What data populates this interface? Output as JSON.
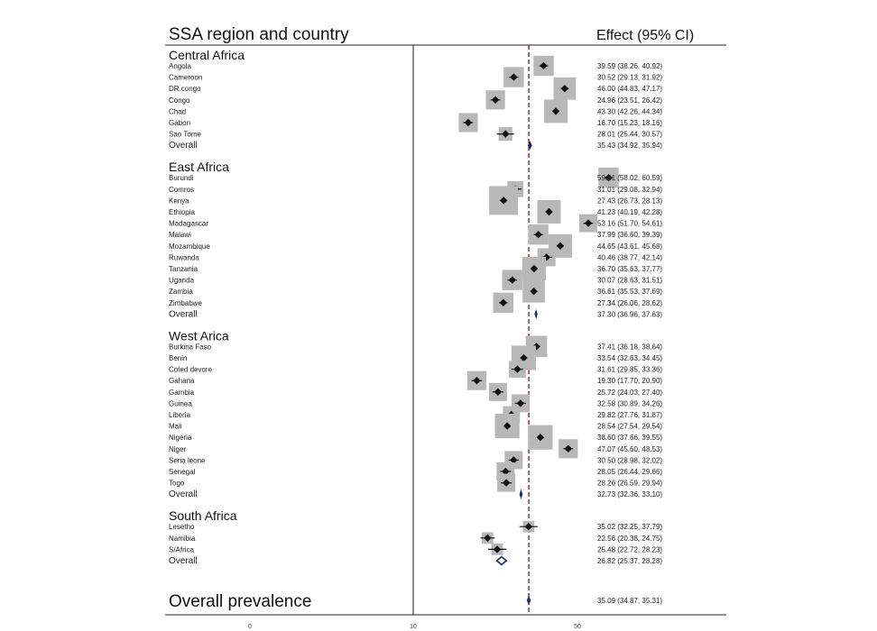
{
  "chart_data": {
    "type": "forest",
    "header_left": "SSA region and country",
    "header_right": "Effect (95% CI)",
    "x_ticks": [
      "0",
      "10",
      "50"
    ],
    "reference_line": 35.09,
    "colors": {
      "square": "#b8b8b8",
      "diamond_overall": "#1f2a6b",
      "ref_line": "#8b1a2b",
      "point": "#111111"
    },
    "groups": [
      {
        "name": "Central Africa",
        "studies": [
          {
            "label": "Angola",
            "est": 39.59,
            "lo": 38.26,
            "hi": 40.92,
            "ci": "39.59 (38.26, 40.92)",
            "weight": 0.6
          },
          {
            "label": "Cameroon",
            "est": 30.52,
            "lo": 29.13,
            "hi": 31.92,
            "ci": "30.52 (29.13, 31.92)",
            "weight": 0.6
          },
          {
            "label": "DR.congo",
            "est": 46.0,
            "lo": 44.83,
            "hi": 47.17,
            "ci": "46.00 (44.83, 47.17)",
            "weight": 0.7
          },
          {
            "label": "Congo",
            "est": 24.96,
            "lo": 23.51,
            "hi": 26.42,
            "ci": "24.96 (23.51, 26.42)",
            "weight": 0.55
          },
          {
            "label": "Chad",
            "est": 43.3,
            "lo": 42.26,
            "hi": 44.34,
            "ci": "43.30 (42.26, 44.34)",
            "weight": 0.75
          },
          {
            "label": "Gabon",
            "est": 16.7,
            "lo": 15.23,
            "hi": 18.16,
            "ci": "16.70 (15.23, 18.16)",
            "weight": 0.55
          },
          {
            "label": "Sao Tome",
            "est": 28.01,
            "lo": 25.44,
            "hi": 30.57,
            "ci": "28.01 (25.44, 30.57)",
            "weight": 0.3
          }
        ],
        "overall": {
          "label": "Overall",
          "est": 35.43,
          "lo": 34.92,
          "hi": 35.94,
          "ci": "35.43 (34.92, 35.94)"
        }
      },
      {
        "name": "East Africa",
        "studies": [
          {
            "label": "Burundi",
            "est": 59.31,
            "lo": 58.02,
            "hi": 60.59,
            "ci": "59.31 (58.02, 60.59)",
            "weight": 0.6
          },
          {
            "label": "Comros",
            "est": 31.01,
            "lo": 29.08,
            "hi": 32.94,
            "ci": "31.01 (29.08, 32.94)",
            "weight": 0.4
          },
          {
            "label": "Kenya",
            "est": 27.43,
            "lo": 26.73,
            "hi": 28.13,
            "ci": "27.43 (26.73, 28.13)",
            "weight": 1.0
          },
          {
            "label": "Ethiopia",
            "est": 41.23,
            "lo": 40.19,
            "hi": 42.28,
            "ci": "41.23 (40.19, 42.28)",
            "weight": 0.75
          },
          {
            "label": "Madagascar",
            "est": 53.16,
            "lo": 51.7,
            "hi": 54.61,
            "ci": "53.16 (51.70, 54.61)",
            "weight": 0.5
          },
          {
            "label": "Malawi",
            "est": 37.99,
            "lo": 36.6,
            "hi": 39.39,
            "ci": "37.99 (36.60, 39.39)",
            "weight": 0.6
          },
          {
            "label": "Mozambique",
            "est": 44.65,
            "lo": 43.61,
            "hi": 45.68,
            "ci": "44.65 (43.61, 45.68)",
            "weight": 0.75
          },
          {
            "label": "Ruwanda",
            "est": 40.46,
            "lo": 38.77,
            "hi": 42.14,
            "ci": "40.46 (38.77, 42.14)",
            "weight": 0.5
          },
          {
            "label": "Tanzania",
            "est": 36.7,
            "lo": 35.63,
            "hi": 37.77,
            "ci": "36.70 (35.63, 37.77)",
            "weight": 0.75
          },
          {
            "label": "Uganda",
            "est": 30.07,
            "lo": 28.63,
            "hi": 31.51,
            "ci": "30.07 (28.63, 31.51)",
            "weight": 0.6
          },
          {
            "label": "Zambia",
            "est": 36.61,
            "lo": 35.53,
            "hi": 37.69,
            "ci": "36.61 (35.53, 37.69)",
            "weight": 0.7
          },
          {
            "label": "Zimbabwe",
            "est": 27.34,
            "lo": 26.06,
            "hi": 28.62,
            "ci": "27.34 (26.06, 28.62)",
            "weight": 0.6
          }
        ],
        "overall": {
          "label": "Overall",
          "est": 37.3,
          "lo": 36.96,
          "hi": 37.63,
          "ci": "37.30 (36.96, 37.63)"
        }
      },
      {
        "name": "West Arica",
        "studies": [
          {
            "label": "Burkina Faso",
            "est": 37.41,
            "lo": 36.18,
            "hi": 38.64,
            "ci": "37.41 (36.18, 38.64)",
            "weight": 0.65
          },
          {
            "label": "Benin",
            "est": 33.54,
            "lo": 32.63,
            "hi": 34.45,
            "ci": "33.54 (32.63, 34.45)",
            "weight": 0.8
          },
          {
            "label": "Coted devore",
            "est": 31.61,
            "lo": 29.85,
            "hi": 33.36,
            "ci": "31.61 (29.85, 33.36)",
            "weight": 0.45
          },
          {
            "label": "Gahana",
            "est": 19.3,
            "lo": 17.7,
            "hi": 20.9,
            "ci": "19.30 (17.70, 20.90)",
            "weight": 0.55
          },
          {
            "label": "Gambia",
            "est": 25.72,
            "lo": 24.03,
            "hi": 27.4,
            "ci": "25.72 (24.03, 27.40)",
            "weight": 0.5
          },
          {
            "label": "Guinea",
            "est": 32.58,
            "lo": 30.89,
            "hi": 34.26,
            "ci": "32.58 (30.89, 34.26)",
            "weight": 0.5
          },
          {
            "label": "Liberia",
            "est": 29.82,
            "lo": 27.76,
            "hi": 31.87,
            "ci": "29.82 (27.76, 31.87)",
            "weight": 0.45
          },
          {
            "label": "Mali",
            "est": 28.54,
            "lo": 27.54,
            "hi": 29.54,
            "ci": "28.54 (27.54, 29.54)",
            "weight": 0.8
          },
          {
            "label": "Nigeria",
            "est": 38.6,
            "lo": 37.66,
            "hi": 39.55,
            "ci": "38.60 (37.66, 39.55)",
            "weight": 0.8
          },
          {
            "label": "Niger",
            "est": 47.07,
            "lo": 45.6,
            "hi": 48.53,
            "ci": "47.07 (45.60, 48.53)",
            "weight": 0.55
          },
          {
            "label": "Seria leone",
            "est": 30.5,
            "lo": 28.98,
            "hi": 32.02,
            "ci": "30.50 (28.98, 32.02)",
            "weight": 0.5
          },
          {
            "label": "Senegal",
            "est": 28.05,
            "lo": 26.44,
            "hi": 29.66,
            "ci": "28.05 (26.44, 29.66)",
            "weight": 0.5
          },
          {
            "label": "Togo",
            "est": 28.26,
            "lo": 26.59,
            "hi": 29.94,
            "ci": "28.26 (26.59, 29.94)",
            "weight": 0.5
          }
        ],
        "overall": {
          "label": "Overall",
          "est": 32.73,
          "lo": 32.36,
          "hi": 33.1,
          "ci": "32.73 (32.36, 33.10)"
        }
      },
      {
        "name": "South Africa",
        "studies": [
          {
            "label": "Lesetho",
            "est": 35.02,
            "lo": 32.25,
            "hi": 37.79,
            "ci": "35.02 (32.25, 37.79)",
            "weight": 0.2
          },
          {
            "label": "Namibia",
            "est": 22.56,
            "lo": 20.38,
            "hi": 24.75,
            "ci": "22.56 (20.38, 24.75)",
            "weight": 0.2
          },
          {
            "label": "S/Africa",
            "est": 25.48,
            "lo": 22.72,
            "hi": 28.23,
            "ci": "25.48 (22.72, 28.23)",
            "weight": 0.2
          }
        ],
        "overall": {
          "label": "Overall",
          "est": 26.82,
          "lo": 25.37,
          "hi": 28.28,
          "ci": "26.82 (25.37, 28.28)",
          "hollow": true
        }
      }
    ],
    "overall_prevalence": {
      "label": "Overall prevalence",
      "est": 35.09,
      "lo": 34.87,
      "hi": 35.31,
      "ci": "35.09 (34.87, 35.31)"
    }
  }
}
